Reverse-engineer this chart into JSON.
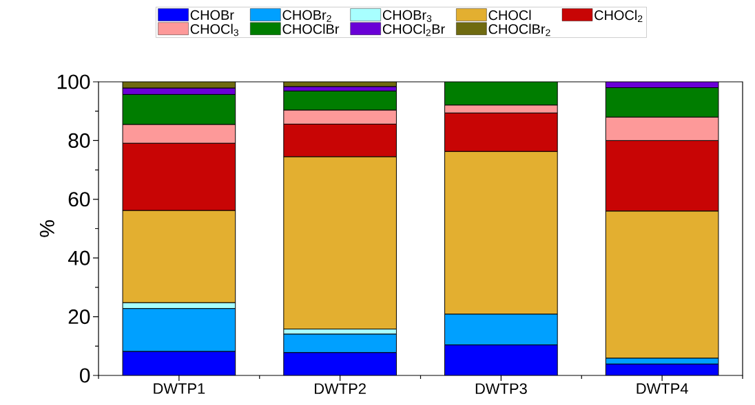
{
  "chart_data": {
    "type": "bar",
    "stacked": true,
    "ylabel": "%",
    "categories": [
      "DWTP1",
      "DWTP2",
      "DWTP3",
      "DWTP4"
    ],
    "ylim": [
      0,
      100
    ],
    "yticks": [
      0,
      20,
      40,
      60,
      80,
      100
    ],
    "legend": "top",
    "grid": false,
    "series": [
      {
        "name": "CHOBr",
        "color": "#0000ff",
        "values": [
          8.2,
          7.8,
          10.4,
          3.9
        ]
      },
      {
        "name": "CHOBr$_{2}$",
        "color": "#00a0ff",
        "values": [
          14.6,
          6.3,
          10.5,
          2.0
        ]
      },
      {
        "name": "CHOBr$_{3}$",
        "color": "#a8ffff",
        "values": [
          2.0,
          1.7,
          null,
          null
        ]
      },
      {
        "name": "CHOCl",
        "color": "#e3af30",
        "values": [
          31.4,
          58.7,
          55.4,
          50.1
        ]
      },
      {
        "name": "CHOCl$_{2}$",
        "color": "#c80505",
        "values": [
          22.9,
          11.1,
          13.1,
          24.0
        ]
      },
      {
        "name": "CHOCl$_{3}$",
        "color": "#fd9999",
        "values": [
          6.4,
          4.8,
          2.7,
          8.0
        ]
      },
      {
        "name": "CHOClBr",
        "color": "#007d00",
        "values": [
          10.2,
          6.5,
          7.9,
          10.0
        ]
      },
      {
        "name": "CHOCl$_{2}$Br",
        "color": "#6a00d6",
        "values": [
          2.2,
          1.5,
          null,
          2.0
        ]
      },
      {
        "name": "CHOClBr$_{2}$",
        "color": "#6f6a10",
        "values": [
          2.1,
          1.6,
          null,
          null
        ]
      }
    ]
  }
}
